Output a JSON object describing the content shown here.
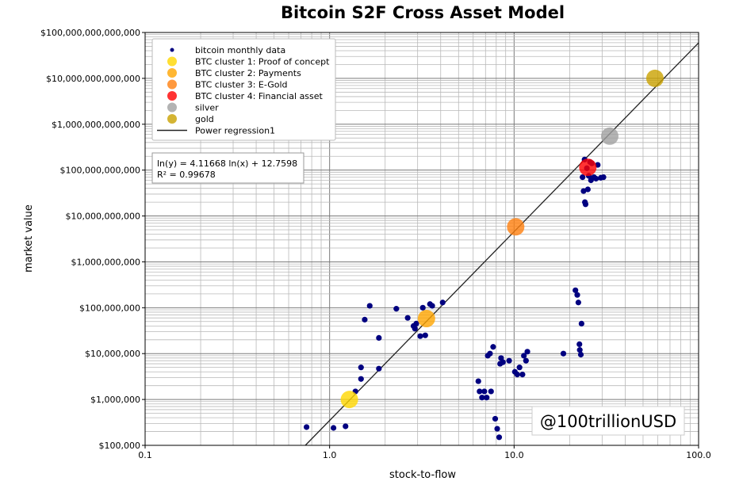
{
  "chart_data": {
    "type": "scatter",
    "title": "Bitcoin S2F Cross Asset Model",
    "xlabel": "stock-to-flow",
    "ylabel": "market value",
    "xscale": "log",
    "yscale": "log",
    "xlim": [
      0.1,
      100
    ],
    "ylim": [
      100000,
      100000000000000
    ],
    "grid": true,
    "x_ticks": [
      {
        "value": 0.1,
        "label": "0.1"
      },
      {
        "value": 1,
        "label": "1.0"
      },
      {
        "value": 10,
        "label": "10.0"
      },
      {
        "value": 100,
        "label": "100.0"
      }
    ],
    "y_ticks": [
      {
        "value": 100000,
        "label": "$100,000"
      },
      {
        "value": 1000000,
        "label": "$1,000,000"
      },
      {
        "value": 10000000,
        "label": "$10,000,000"
      },
      {
        "value": 100000000,
        "label": "$100,000,000"
      },
      {
        "value": 1000000000,
        "label": "$1,000,000,000"
      },
      {
        "value": 10000000000,
        "label": "$10,000,000,000"
      },
      {
        "value": 100000000000,
        "label": "$100,000,000,000"
      },
      {
        "value": 1000000000000,
        "label": "$1,000,000,000,000"
      },
      {
        "value": 10000000000000,
        "label": "$10,000,000,000,000"
      },
      {
        "value": 100000000000000,
        "label": "$100,000,000,000,000"
      }
    ],
    "legend_position": "top-left",
    "series": [
      {
        "name": "bitcoin monthly data",
        "color": "#000080",
        "marker": "small-dot",
        "points": [
          [
            0.75,
            250000
          ],
          [
            1.05,
            240000
          ],
          [
            1.22,
            260000
          ],
          [
            1.38,
            1500000
          ],
          [
            1.48,
            2800000
          ],
          [
            1.48,
            5000000
          ],
          [
            1.55,
            55000000
          ],
          [
            1.65,
            110000000
          ],
          [
            1.85,
            22000000
          ],
          [
            1.85,
            4700000
          ],
          [
            2.3,
            95000000
          ],
          [
            2.65,
            60000000
          ],
          [
            2.85,
            40000000
          ],
          [
            2.9,
            35000000
          ],
          [
            2.95,
            45000000
          ],
          [
            3.1,
            24000000
          ],
          [
            3.3,
            25000000
          ],
          [
            3.2,
            100000000
          ],
          [
            3.5,
            120000000
          ],
          [
            3.6,
            110000000
          ],
          [
            4.1,
            130000000
          ],
          [
            6.4,
            2500000
          ],
          [
            6.5,
            1500000
          ],
          [
            6.7,
            1100000
          ],
          [
            6.9,
            1500000
          ],
          [
            7.1,
            1100000
          ],
          [
            7.2,
            9000000
          ],
          [
            7.4,
            10000000
          ],
          [
            7.5,
            1500000
          ],
          [
            7.7,
            14000000
          ],
          [
            7.9,
            380000
          ],
          [
            8.1,
            230000
          ],
          [
            8.3,
            150000
          ],
          [
            8.4,
            6000000
          ],
          [
            8.5,
            8000000
          ],
          [
            8.7,
            6500000
          ],
          [
            9.4,
            7000000
          ],
          [
            10.1,
            4000000
          ],
          [
            10.4,
            3500000
          ],
          [
            10.7,
            5000000
          ],
          [
            11.1,
            3500000
          ],
          [
            11.3,
            9000000
          ],
          [
            11.6,
            7000000
          ],
          [
            11.8,
            11000000
          ],
          [
            18.5,
            10000000
          ],
          [
            21.5,
            240000000
          ],
          [
            22,
            190000000
          ],
          [
            22.3,
            130000000
          ],
          [
            22.6,
            16000000
          ],
          [
            22.7,
            12000000
          ],
          [
            23,
            9500000
          ],
          [
            23.2,
            45000000
          ],
          [
            23.5,
            70000000000
          ],
          [
            23.8,
            35000000000
          ],
          [
            24.1,
            170000000000
          ],
          [
            24.2,
            20000000000
          ],
          [
            24.4,
            18000000000
          ],
          [
            24.8,
            110000000000
          ],
          [
            25.1,
            38000000000
          ],
          [
            25.4,
            75000000000
          ],
          [
            25.8,
            150000000000
          ],
          [
            26.1,
            60000000000
          ],
          [
            26.4,
            140000000000
          ],
          [
            27.1,
            70000000000
          ],
          [
            27.8,
            65000000000
          ],
          [
            28.4,
            130000000000
          ],
          [
            29.5,
            68000000000
          ],
          [
            30.5,
            70000000000
          ]
        ]
      },
      {
        "name": "BTC cluster 1: Proof of concept",
        "color": "#FFD700",
        "marker": "large-circle",
        "points": [
          [
            1.28,
            1000000
          ]
        ]
      },
      {
        "name": "BTC cluster 2: Payments",
        "color": "#FFA500",
        "marker": "large-circle",
        "points": [
          [
            3.35,
            58000000
          ]
        ]
      },
      {
        "name": "BTC cluster 3: E-Gold",
        "color": "#FF7F0E",
        "marker": "large-circle",
        "points": [
          [
            10.2,
            5800000000
          ]
        ]
      },
      {
        "name": "BTC cluster 4: Financial asset",
        "color": "#FF0000",
        "marker": "large-circle",
        "points": [
          [
            25.1,
            115000000000
          ]
        ]
      },
      {
        "name": "silver",
        "color": "#A0A0A0",
        "marker": "large-circle",
        "points": [
          [
            33,
            550000000000
          ]
        ]
      },
      {
        "name": "gold",
        "color": "#C9A100",
        "marker": "large-circle",
        "points": [
          [
            58,
            10000000000000
          ]
        ]
      }
    ],
    "regression": {
      "name": "Power regression1",
      "equation": "ln(y) = 4.11668 ln(x) + 12.7598",
      "r_squared": "R² = 0.99678",
      "slope": 4.11668,
      "intercept": 12.7598,
      "color": "#222222"
    },
    "watermark": "@100trillionUSD"
  }
}
